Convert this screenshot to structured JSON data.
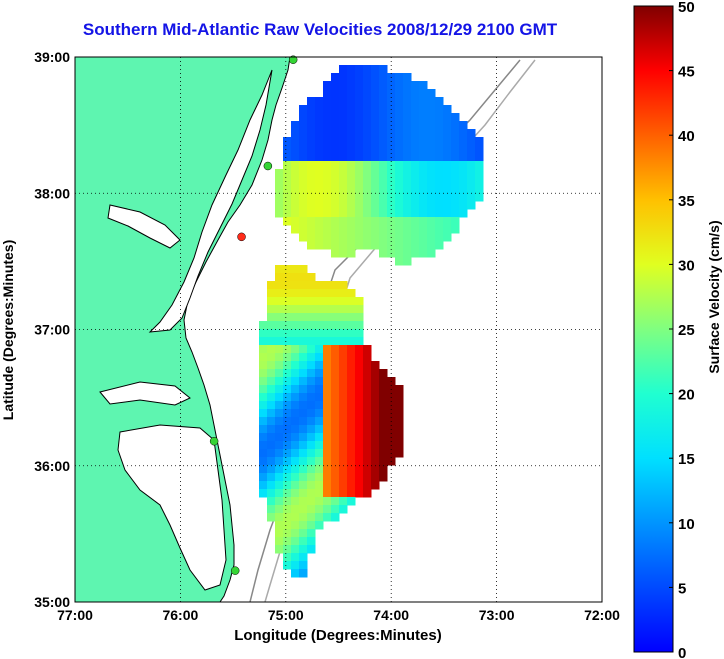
{
  "map": {
    "title": "Southern Mid-Atlantic Raw Velocities 2008/12/29 2100 GMT",
    "xlabel": "Longitude (Degrees:Minutes)",
    "ylabel": "Latitude (Degrees:Minutes)",
    "x_ticks": [
      {
        "lon": -77,
        "label": "77:00"
      },
      {
        "lon": -76,
        "label": "76:00"
      },
      {
        "lon": -75,
        "label": "75:00"
      },
      {
        "lon": -74,
        "label": "74:00"
      },
      {
        "lon": -73,
        "label": "73:00"
      },
      {
        "lon": -72,
        "label": "72:00"
      }
    ],
    "y_ticks": [
      {
        "lat": 35,
        "label": "35:00"
      },
      {
        "lat": 36,
        "label": "36:00"
      },
      {
        "lat": 37,
        "label": "37:00"
      },
      {
        "lat": 38,
        "label": "38:00"
      },
      {
        "lat": 39,
        "label": "39:00"
      }
    ],
    "lon_range": [
      -77,
      -72
    ],
    "lat_range": [
      35,
      39
    ],
    "grid": "dotted",
    "colors": {
      "land": "#5ef5b0",
      "title": "#1414e6",
      "coast": "#000000",
      "bathymetry": "#888888"
    },
    "stations": [
      {
        "lon": -74.93,
        "lat": 38.98,
        "color": "#35d435"
      },
      {
        "lon": -75.17,
        "lat": 38.2,
        "color": "#35d435"
      },
      {
        "lon": -75.42,
        "lat": 37.68,
        "color": "#ff2b1a"
      },
      {
        "lon": -75.68,
        "lat": 36.18,
        "color": "#35d435"
      },
      {
        "lon": -75.48,
        "lat": 35.23,
        "color": "#35d435"
      }
    ]
  },
  "colorbar": {
    "label": "Surface Velocity (cm/s)",
    "range": [
      0,
      50
    ],
    "ticks": [
      "0",
      "5",
      "10",
      "15",
      "20",
      "25",
      "30",
      "35",
      "40",
      "45",
      "50"
    ]
  }
}
